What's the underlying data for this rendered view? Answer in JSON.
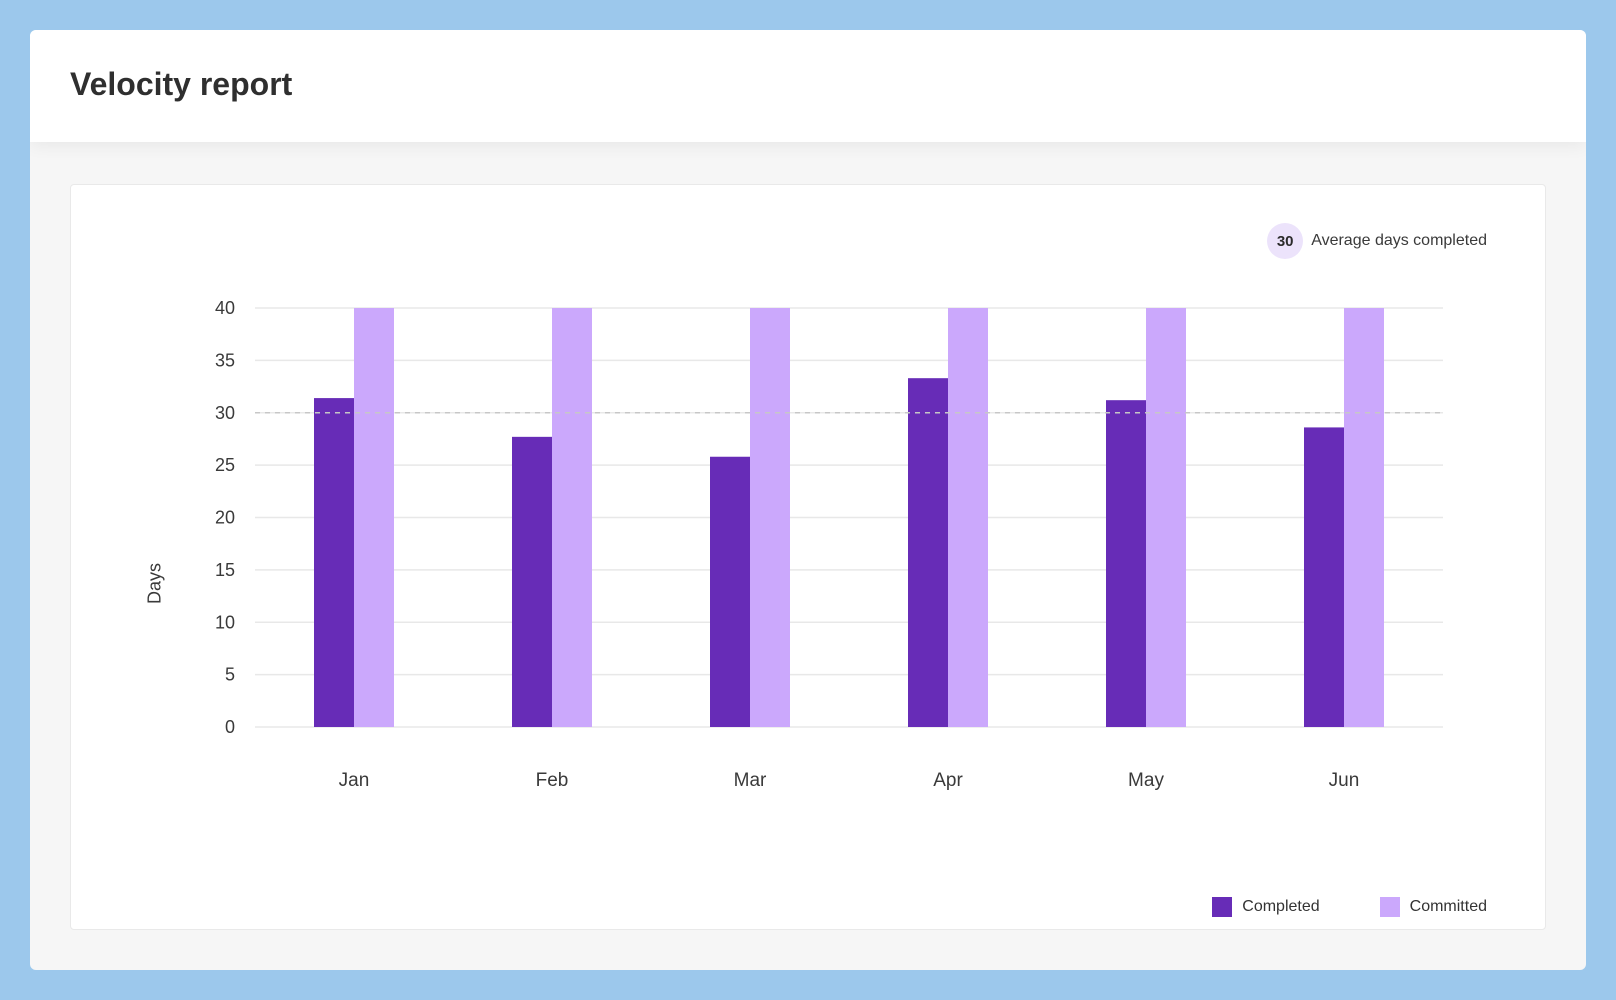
{
  "header": {
    "title": "Velocity report"
  },
  "summary": {
    "average_value": "30",
    "average_label": "Average days completed"
  },
  "colors": {
    "completed": "#672cb7",
    "committed": "#cba8fc",
    "average_line": "#c7c7c7"
  },
  "chart_data": {
    "type": "bar",
    "title": "",
    "xlabel": "",
    "ylabel": "Days",
    "ylim": [
      0,
      40
    ],
    "yticks": [
      0,
      5,
      10,
      15,
      20,
      25,
      30,
      35,
      40
    ],
    "categories": [
      "Jan",
      "Feb",
      "Mar",
      "Apr",
      "May",
      "Jun"
    ],
    "series": [
      {
        "name": "Completed",
        "values": [
          31.4,
          27.7,
          25.8,
          33.3,
          31.2,
          28.6
        ]
      },
      {
        "name": "Committed",
        "values": [
          40,
          40,
          40,
          40,
          40,
          40
        ]
      }
    ],
    "reference_line": {
      "value": 30,
      "style": "dashed"
    },
    "legend": {
      "position": "bottom-right",
      "entries": [
        "Completed",
        "Committed"
      ]
    },
    "grid": true
  }
}
